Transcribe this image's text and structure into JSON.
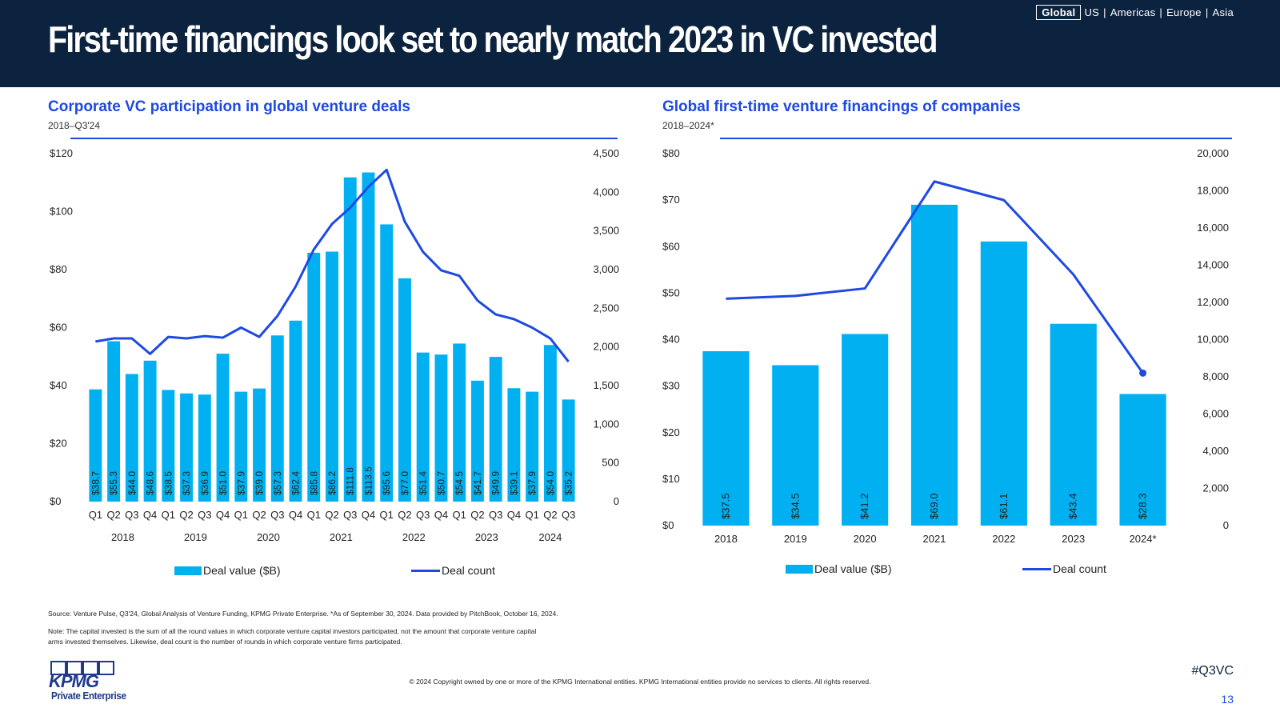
{
  "header": {
    "title": "First-time financings look set to nearly match 2023 in VC invested",
    "regions": {
      "active": "Global",
      "items": [
        "US",
        "Americas",
        "Europe",
        "Asia"
      ]
    }
  },
  "left_panel": {
    "title": "Corporate VC participation in global venture deals",
    "subtitle": "2018–Q3'24"
  },
  "right_panel": {
    "title": "Global first-time venture financings of companies",
    "subtitle": "2018–2024*"
  },
  "legend": {
    "bar_label": "Deal value ($B)",
    "line_label": "Deal count"
  },
  "chart_data": [
    {
      "type": "bar",
      "combo": "bar+line",
      "title": "Corporate VC participation in global venture deals",
      "subtitle": "2018–Q3'24",
      "categories": [
        "Q1",
        "Q2",
        "Q3",
        "Q4",
        "Q1",
        "Q2",
        "Q3",
        "Q4",
        "Q1",
        "Q2",
        "Q3",
        "Q4",
        "Q1",
        "Q2",
        "Q3",
        "Q4",
        "Q1",
        "Q2",
        "Q3",
        "Q4",
        "Q1",
        "Q2",
        "Q3",
        "Q4",
        "Q1",
        "Q2",
        "Q3"
      ],
      "year_groups": [
        {
          "label": "2018",
          "start": 0,
          "end": 3
        },
        {
          "label": "2019",
          "start": 4,
          "end": 7
        },
        {
          "label": "2020",
          "start": 8,
          "end": 11
        },
        {
          "label": "2021",
          "start": 12,
          "end": 15
        },
        {
          "label": "2022",
          "start": 16,
          "end": 19
        },
        {
          "label": "2023",
          "start": 20,
          "end": 23
        },
        {
          "label": "2024",
          "start": 24,
          "end": 26
        }
      ],
      "series": [
        {
          "name": "Deal value ($B)",
          "kind": "bar",
          "axis": "left",
          "color": "#00b0f0",
          "values": [
            38.7,
            55.3,
            44.0,
            48.6,
            38.5,
            37.3,
            36.9,
            51.0,
            37.9,
            39.0,
            57.3,
            62.4,
            85.8,
            86.2,
            111.8,
            113.5,
            95.6,
            77.0,
            51.4,
            50.7,
            54.5,
            41.7,
            49.9,
            39.1,
            37.9,
            54.0,
            35.2
          ],
          "labels": [
            "$38.7",
            "$55.3",
            "$44.0",
            "$48.6",
            "$38.5",
            "$37.3",
            "$36.9",
            "$51.0",
            "$37.9",
            "$39.0",
            "$57.3",
            "$62.4",
            "$85.8",
            "$86.2",
            "$111.8",
            "$113.5",
            "$95.6",
            "$77.0",
            "$51.4",
            "$50.7",
            "$54.5",
            "$41.7",
            "$49.9",
            "$39.1",
            "$37.9",
            "$54.0",
            "$35.2"
          ]
        },
        {
          "name": "Deal count",
          "kind": "line",
          "axis": "right",
          "color": "#1e49e2",
          "values": [
            2070,
            2110,
            2110,
            1910,
            2130,
            2110,
            2140,
            2120,
            2250,
            2130,
            2400,
            2780,
            3260,
            3590,
            3800,
            4070,
            4290,
            3620,
            3230,
            2990,
            2920,
            2600,
            2420,
            2360,
            2250,
            2110,
            1810
          ]
        }
      ],
      "y_left": {
        "min": 0,
        "max": 120,
        "ticks": [
          "$0",
          "$20",
          "$40",
          "$60",
          "$80",
          "$100",
          "$120"
        ]
      },
      "y_right": {
        "min": 0,
        "max": 4500,
        "ticks": [
          "0",
          "500",
          "1,000",
          "1,500",
          "2,000",
          "2,500",
          "3,000",
          "3,500",
          "4,000",
          "4,500"
        ]
      },
      "grid": false,
      "legend_position": "bottom"
    },
    {
      "type": "bar",
      "combo": "bar+line",
      "title": "Global first-time venture financings of companies",
      "subtitle": "2018–2024*",
      "categories": [
        "2018",
        "2019",
        "2020",
        "2021",
        "2022",
        "2023",
        "2024*"
      ],
      "series": [
        {
          "name": "Deal value ($B)",
          "kind": "bar",
          "axis": "left",
          "color": "#00b0f0",
          "values": [
            37.5,
            34.5,
            41.2,
            69.0,
            61.1,
            43.4,
            28.3
          ],
          "labels": [
            "$37.5",
            "$34.5",
            "$41.2",
            "$69.0",
            "$61.1",
            "$43.4",
            "$28.3"
          ]
        },
        {
          "name": "Deal count",
          "kind": "line",
          "axis": "right",
          "color": "#1e49e2",
          "values": [
            12200,
            12350,
            12750,
            18500,
            17500,
            13500,
            8200
          ]
        }
      ],
      "y_left": {
        "min": 0,
        "max": 80,
        "ticks": [
          "$0",
          "$10",
          "$20",
          "$30",
          "$40",
          "$50",
          "$60",
          "$70",
          "$80"
        ]
      },
      "y_right": {
        "min": 0,
        "max": 20000,
        "ticks": [
          "0",
          "2,000",
          "4,000",
          "6,000",
          "8,000",
          "10,000",
          "12,000",
          "14,000",
          "16,000",
          "18,000",
          "20,000"
        ]
      },
      "grid": false,
      "legend_position": "bottom"
    }
  ],
  "footer": {
    "source": "Source: Venture Pulse, Q3'24, Global Analysis of Venture Funding, KPMG Private Enterprise. *As of September 30, 2024. Data provided by PitchBook, October 16, 2024.",
    "note_line1": "Note: The capital invested is the sum of all the round values in which corporate venture capital investors participated, not the amount that corporate venture capital",
    "note_line2": "arms invested themselves. Likewise, deal count is the number of rounds in which corporate venture firms participated.",
    "copyright": "© 2024 Copyright owned by one or more of the KPMG International entities. KPMG International entities provide no services to clients. All rights reserved.",
    "logo_text": "KPMG",
    "logo_sub": "Private Enterprise",
    "hashtag": "#Q3VC",
    "page_number": "13"
  },
  "colors": {
    "header_bg": "#0c2340",
    "accent": "#1e49e2",
    "bar": "#00b0f0"
  }
}
